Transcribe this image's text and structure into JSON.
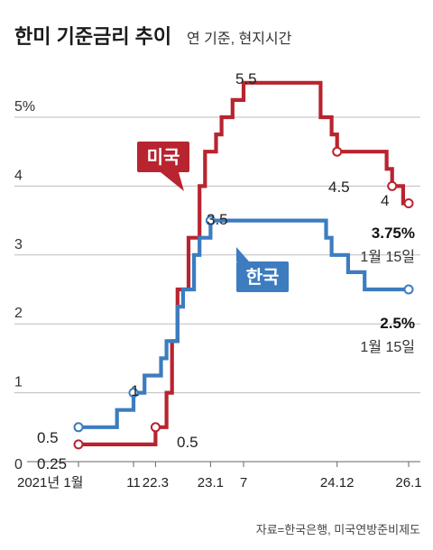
{
  "chart_data": {
    "type": "line",
    "title": "한미 기준금리 추이",
    "subtitle": "연 기준, 현지시간",
    "ylim": [
      0,
      6
    ],
    "yticks": [
      {
        "value": 0,
        "label": "0"
      },
      {
        "value": 1,
        "label": "1"
      },
      {
        "value": 2,
        "label": "2"
      },
      {
        "value": 3,
        "label": "3"
      },
      {
        "value": 4,
        "label": "4"
      },
      {
        "value": 5,
        "label": "5%"
      }
    ],
    "grid": true,
    "xticks": [
      {
        "x": "2021-01",
        "label": "2021년 1월"
      },
      {
        "x": "2021-11",
        "label": "11"
      },
      {
        "x": "2022-03",
        "label": "22.3"
      },
      {
        "x": "2023-01",
        "label": "23.1"
      },
      {
        "x": "2023-07",
        "label": "7"
      },
      {
        "x": "2024-12",
        "label": "24.12"
      },
      {
        "x": "2026-01",
        "label": "26.1"
      }
    ],
    "xlim": [
      "2021-01",
      "2026-01"
    ],
    "series": [
      {
        "name": "미국",
        "color": "#b8242f",
        "step": true,
        "points": [
          [
            "2021-01",
            0.25
          ],
          [
            "2022-03",
            0.5
          ],
          [
            "2022-05",
            1.0
          ],
          [
            "2022-06",
            1.75
          ],
          [
            "2022-07",
            2.5
          ],
          [
            "2022-09",
            3.25
          ],
          [
            "2022-11",
            4.0
          ],
          [
            "2022-12",
            4.5
          ],
          [
            "2023-02",
            4.75
          ],
          [
            "2023-03",
            5.0
          ],
          [
            "2023-05",
            5.25
          ],
          [
            "2023-07",
            5.5
          ],
          [
            "2024-09",
            5.0
          ],
          [
            "2024-11",
            4.75
          ],
          [
            "2024-12",
            4.5
          ],
          [
            "2025-09",
            4.25
          ],
          [
            "2025-10",
            4.0
          ],
          [
            "2025-12",
            3.75
          ],
          [
            "2026-01",
            3.75
          ]
        ],
        "markers": [
          [
            "2021-01",
            0.25
          ],
          [
            "2022-03",
            0.5
          ],
          [
            "2024-12",
            4.5
          ],
          [
            "2025-10",
            4.0
          ],
          [
            "2026-01",
            3.75
          ]
        ]
      },
      {
        "name": "한국",
        "color": "#3c7cbf",
        "step": true,
        "points": [
          [
            "2021-01",
            0.5
          ],
          [
            "2021-08",
            0.75
          ],
          [
            "2021-11",
            1.0
          ],
          [
            "2022-01",
            1.25
          ],
          [
            "2022-04",
            1.5
          ],
          [
            "2022-05",
            1.75
          ],
          [
            "2022-07",
            2.25
          ],
          [
            "2022-08",
            2.5
          ],
          [
            "2022-10",
            3.0
          ],
          [
            "2022-11",
            3.25
          ],
          [
            "2023-01",
            3.5
          ],
          [
            "2024-10",
            3.25
          ],
          [
            "2024-11",
            3.0
          ],
          [
            "2025-02",
            2.75
          ],
          [
            "2025-05",
            2.5
          ],
          [
            "2026-01",
            2.5
          ]
        ],
        "markers": [
          [
            "2021-01",
            0.5
          ],
          [
            "2021-11",
            1.0
          ],
          [
            "2023-01",
            3.5
          ],
          [
            "2026-01",
            2.5
          ]
        ]
      }
    ],
    "annotations": [
      "0.5",
      "0.25",
      "1",
      "0.5",
      "3.5",
      "5.5",
      "4.5",
      "4",
      "3.75%",
      "1월 15일",
      "2.5%",
      "1월 15일"
    ],
    "source": "자료=한국은행, 미국연방준비제도"
  }
}
